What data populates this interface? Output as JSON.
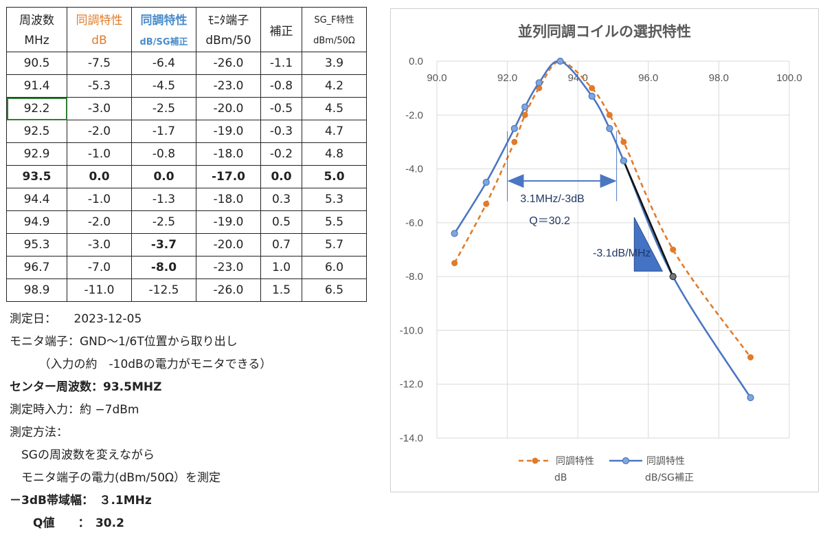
{
  "table": {
    "header_row1": [
      "周波数",
      "同調特性",
      "同調特性",
      "ﾓﾆﾀ端子",
      "補正",
      "SG_F特性"
    ],
    "header_row2": [
      "MHz",
      "dB",
      "dB/SG補正",
      "dBm/50",
      "",
      "dBm/50Ω"
    ],
    "rows": [
      [
        "90.5",
        "-7.5",
        "-6.4",
        "-26.0",
        "-1.1",
        "3.9"
      ],
      [
        "91.4",
        "-5.3",
        "-4.5",
        "-23.0",
        "-0.8",
        "4.2"
      ],
      [
        "92.2",
        "-3.0",
        "-2.5",
        "-20.0",
        "-0.5",
        "4.5"
      ],
      [
        "92.5",
        "-2.0",
        "-1.7",
        "-19.0",
        "-0.3",
        "4.7"
      ],
      [
        "92.9",
        "-1.0",
        "-0.8",
        "-18.0",
        "-0.2",
        "4.8"
      ],
      [
        "93.5",
        "0.0",
        "0.0",
        "-17.0",
        "0.0",
        "5.0"
      ],
      [
        "94.4",
        "-1.0",
        "-1.3",
        "-18.0",
        "0.3",
        "5.3"
      ],
      [
        "94.9",
        "-2.0",
        "-2.5",
        "-19.0",
        "0.5",
        "5.5"
      ],
      [
        "95.3",
        "-3.0",
        "-3.7",
        "-20.0",
        "0.7",
        "5.7"
      ],
      [
        "96.7",
        "-7.0",
        "-8.0",
        "-23.0",
        "1.0",
        "6.0"
      ],
      [
        "98.9",
        "-11.0",
        "-12.5",
        "-26.0",
        "1.5",
        "6.5"
      ]
    ]
  },
  "notes": [
    {
      "text": "測定日：　　2023-12-05",
      "bold": false
    },
    {
      "text": "モニタ端子：GND～1/6T位置から取り出し",
      "bold": false
    },
    {
      "text": "　　　（入力の約　-10dBの電力がモニタできる）",
      "bold": false
    },
    {
      "text": "センター周波数：93.5MHZ",
      "bold": true
    },
    {
      "text": "測定時入力：約 −7dBm",
      "bold": false
    },
    {
      "text": "測定方法：",
      "bold": false
    },
    {
      "text": "　SGの周波数を変えながら",
      "bold": false
    },
    {
      "text": "　モニタ端子の電力(dBm/50Ω）を測定",
      "bold": false
    },
    {
      "text": "－3dB帯域幅：　３.1MHz",
      "bold": true
    },
    {
      "text": "　　Q値　　：　30.2",
      "bold": true
    }
  ],
  "colors": {
    "orange": "#e07b2a",
    "blue": "#4a76c2",
    "annotation": "#1f3864",
    "grid": "#d9d9d9"
  },
  "chart_data": {
    "type": "line",
    "title": "並列同調コイルの選択特性",
    "xlim": [
      90.0,
      100.0
    ],
    "ylim": [
      -14.0,
      0.0
    ],
    "x_ticks": [
      90.0,
      92.0,
      94.0,
      96.0,
      98.0,
      100.0
    ],
    "y_ticks": [
      0.0,
      -2.0,
      -4.0,
      -6.0,
      -8.0,
      -10.0,
      -12.0,
      -14.0
    ],
    "x_tick_labels": [
      "90.0",
      "92.0",
      "94.0",
      "96.0",
      "98.0",
      "100.0"
    ],
    "y_tick_labels": [
      "0.0",
      "-2.0",
      "-4.0",
      "-6.0",
      "-8.0",
      "-10.0",
      "-12.0",
      "-14.0"
    ],
    "grid": true,
    "legend_position": "bottom",
    "x": [
      90.5,
      91.4,
      92.2,
      92.5,
      92.9,
      93.5,
      94.4,
      94.9,
      95.3,
      96.7,
      98.9
    ],
    "series": [
      {
        "name": "同調特性 dB",
        "style": "dashed",
        "color": "#e07b2a",
        "values": [
          -7.5,
          -5.3,
          -3.0,
          -2.0,
          -1.0,
          0.0,
          -1.0,
          -2.0,
          -3.0,
          -7.0,
          -11.0
        ]
      },
      {
        "name": "同調特性 dB/SG補正",
        "style": "solid",
        "color": "#4a76c2",
        "values": [
          -6.4,
          -4.5,
          -2.5,
          -1.7,
          -0.8,
          0.0,
          -1.3,
          -2.5,
          -3.7,
          -8.0,
          -12.5
        ]
      }
    ],
    "legend": [
      {
        "line1": "同調特性",
        "line2": "dB"
      },
      {
        "line1": "同調特性",
        "line2": "dB/SG補正"
      }
    ],
    "annotations": {
      "bandwidth_label": "3.1MHz/-3dB",
      "q_label": "Q＝30.2",
      "slope_label": "-3.1dB/MHz",
      "bandwidth_arrow": {
        "x_from": 92.0,
        "x_to": 95.1,
        "y": -4.45
      },
      "bandwidth_markers": {
        "x_left": 92.0,
        "x_right": 95.1,
        "y_top": -2.6,
        "y_bottom": -5.2
      },
      "slope_segment": {
        "x_from": 95.3,
        "y_from": -3.7,
        "x_to": 96.7,
        "y_to": -8.0
      },
      "slope_triangle": [
        [
          95.6,
          -5.8
        ],
        [
          95.6,
          -7.8
        ],
        [
          96.4,
          -7.8
        ]
      ]
    }
  }
}
